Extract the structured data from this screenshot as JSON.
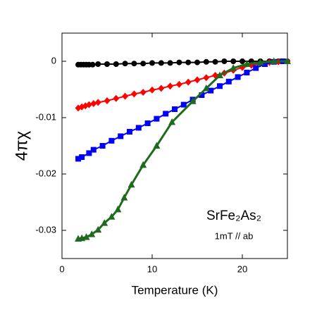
{
  "chart_data": {
    "type": "line",
    "x_label": "Temperature (K)",
    "y_label": "4πχ",
    "annotations": [
      "SrFe₂As₂",
      "1mT // ab"
    ],
    "xlim": [
      0,
      25
    ],
    "xticks": [
      0,
      10,
      20
    ],
    "ylim": [
      -0.035,
      0.005
    ],
    "yticks": [
      0,
      -0.01,
      -0.02,
      -0.03
    ],
    "series": [
      {
        "color": "#000000",
        "marker": "circle",
        "x": [
          1.8,
          2.1,
          2.4,
          2.7,
          3.0,
          3.4,
          4,
          5,
          6,
          7,
          8,
          9,
          10,
          11,
          12,
          13,
          14,
          15,
          16,
          17,
          18,
          19,
          20,
          21,
          22,
          23,
          24,
          25
        ],
        "values": [
          -0.0006,
          -0.0006,
          -0.0006,
          -0.0006,
          -0.0006,
          -0.0006,
          -0.0005,
          -0.0005,
          -0.0005,
          -0.0004,
          -0.0004,
          -0.0004,
          -0.0003,
          -0.0003,
          -0.0003,
          -0.0002,
          -0.0002,
          -0.0002,
          -0.0001,
          -0.0001,
          0,
          0,
          0,
          0,
          0,
          0,
          0,
          0
        ]
      },
      {
        "color": "#ff0000",
        "marker": "diamond",
        "x": [
          1.8,
          2.2,
          2.6,
          3.0,
          3.5,
          4,
          5,
          6,
          7,
          8,
          9,
          10,
          11,
          12,
          13,
          14,
          15,
          16,
          17,
          18,
          19,
          20,
          21,
          22,
          23,
          24,
          25
        ],
        "values": [
          -0.0083,
          -0.0081,
          -0.0079,
          -0.0077,
          -0.0075,
          -0.0073,
          -0.007,
          -0.0066,
          -0.0062,
          -0.0058,
          -0.0055,
          -0.0051,
          -0.0048,
          -0.0044,
          -0.0041,
          -0.0037,
          -0.0033,
          -0.0029,
          -0.0025,
          -0.0021,
          -0.0016,
          -0.0011,
          -0.0007,
          -0.0004,
          -0.0002,
          -0.0001,
          0
        ]
      },
      {
        "color": "#0000ff",
        "marker": "square",
        "x": [
          1.8,
          2.2,
          3.0,
          3.5,
          4.5,
          5.5,
          6.5,
          7.5,
          8.5,
          9.5,
          10.5,
          11.5,
          12.5,
          13.5,
          14.5,
          15.5,
          16.5,
          17.5,
          18.5,
          19.5,
          20.5,
          21.5,
          22.5,
          23.5,
          24.5
        ],
        "values": [
          -0.0173,
          -0.017,
          -0.0163,
          -0.0157,
          -0.015,
          -0.0141,
          -0.0133,
          -0.0125,
          -0.0118,
          -0.011,
          -0.0102,
          -0.0093,
          -0.0085,
          -0.0077,
          -0.0068,
          -0.006,
          -0.0052,
          -0.0044,
          -0.0036,
          -0.0028,
          -0.002,
          -0.0012,
          -0.0005,
          -0.0001,
          0
        ]
      },
      {
        "color": "#1e6b1e",
        "marker": "triangle",
        "x": [
          1.8,
          2.2,
          2.7,
          3.3,
          4.0,
          4.7,
          5.5,
          6.2,
          6.9,
          7.7,
          9.0,
          10.5,
          12.2,
          14.5,
          16,
          17.5,
          19,
          20.5,
          22,
          23.5,
          25
        ],
        "values": [
          -0.0315,
          -0.0314,
          -0.0312,
          -0.0307,
          -0.0299,
          -0.0287,
          -0.0276,
          -0.0263,
          -0.0242,
          -0.0219,
          -0.0184,
          -0.015,
          -0.0108,
          -0.0071,
          -0.0048,
          -0.0025,
          -0.0012,
          -0.0005,
          -0.0002,
          0,
          0
        ]
      }
    ]
  }
}
